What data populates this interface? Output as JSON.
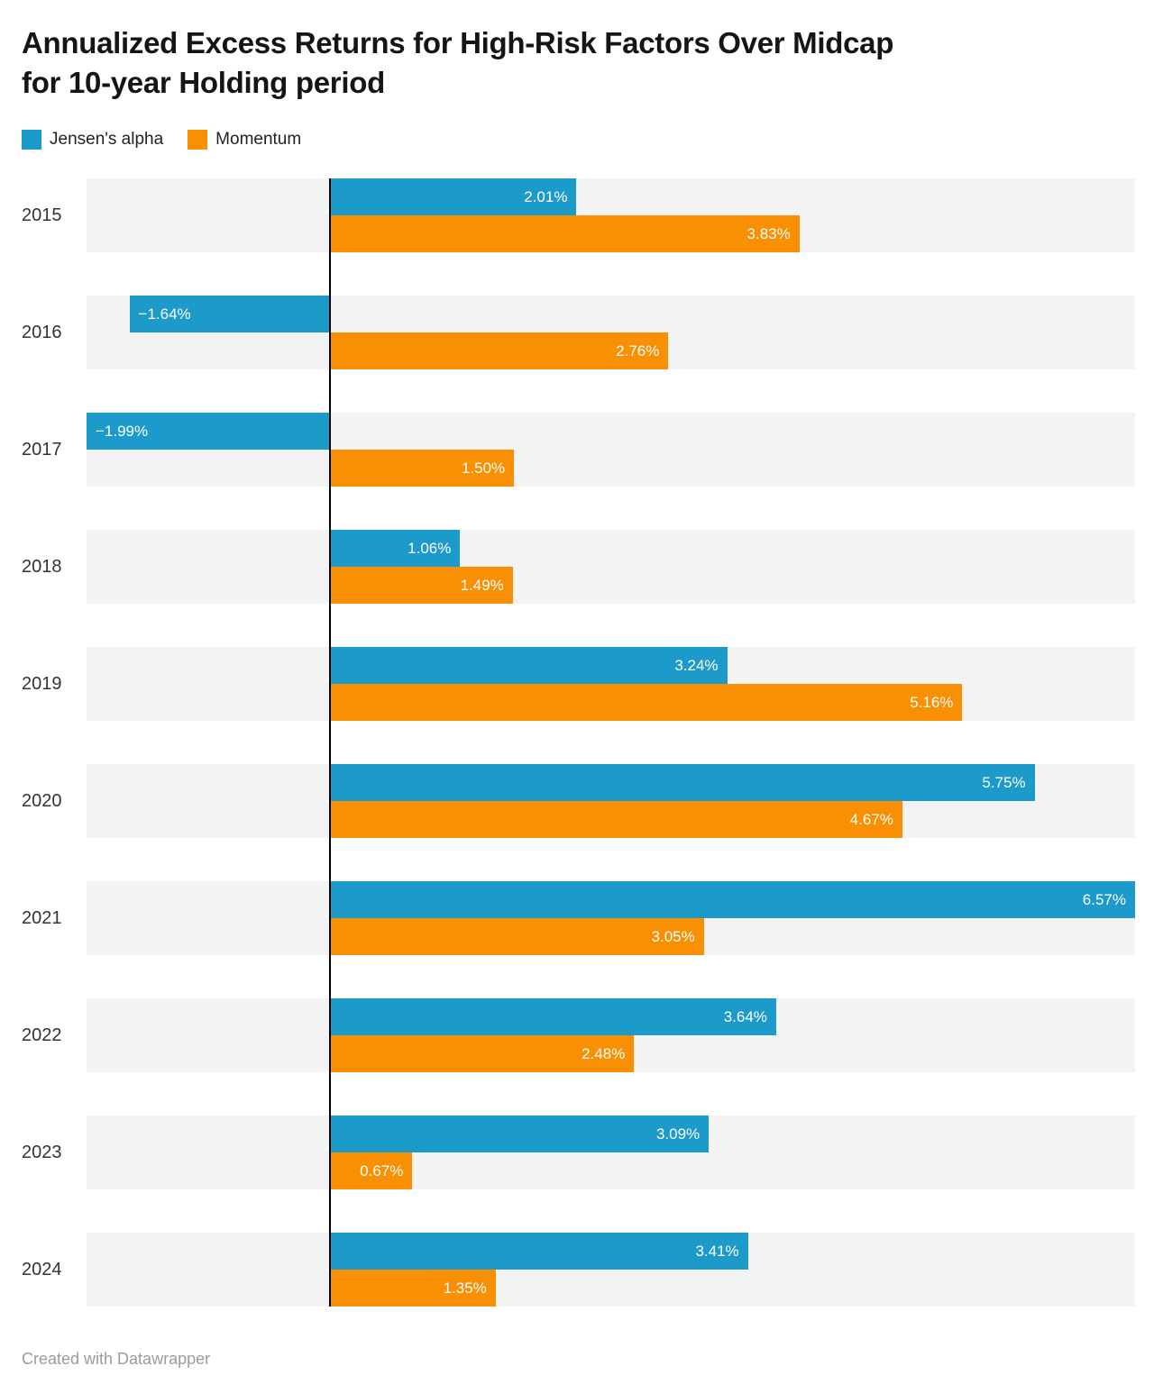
{
  "header": {
    "title": "Annualized Excess Returns for High-Risk Factors Over Midcap\nfor 10-year Holding period"
  },
  "legend": {
    "items": [
      {
        "label": "Jensen's alpha",
        "color": "#1c9bca"
      },
      {
        "label": "Momentum",
        "color": "#f98f03"
      }
    ]
  },
  "chart_data": {
    "type": "bar",
    "orientation": "horizontal",
    "title": "Annualized Excess Returns for High-Risk Factors Over Midcap for 10-year Holding period",
    "unit": "%",
    "xlim": [
      -1.99,
      6.57
    ],
    "grid": false,
    "row_band_color": "#f3f3f3",
    "zero_line_color": "#000000",
    "categories": [
      "2015",
      "2016",
      "2017",
      "2018",
      "2019",
      "2020",
      "2021",
      "2022",
      "2023",
      "2024"
    ],
    "series": [
      {
        "name": "Jensen's alpha",
        "color": "#1c9bca",
        "values": [
          2.01,
          -1.64,
          -1.99,
          1.06,
          3.24,
          5.75,
          6.57,
          3.64,
          3.09,
          3.41
        ],
        "labels": [
          "2.01%",
          "−1.64%",
          "−1.99%",
          "1.06%",
          "3.24%",
          "5.75%",
          "6.57%",
          "3.64%",
          "3.09%",
          "3.41%"
        ]
      },
      {
        "name": "Momentum",
        "color": "#f98f03",
        "values": [
          3.83,
          2.76,
          1.5,
          1.49,
          5.16,
          4.67,
          3.05,
          2.48,
          0.67,
          1.35
        ],
        "labels": [
          "3.83%",
          "2.76%",
          "1.50%",
          "1.49%",
          "5.16%",
          "4.67%",
          "3.05%",
          "2.48%",
          "0.67%",
          "1.35%"
        ]
      }
    ]
  },
  "footer": {
    "text": "Created with Datawrapper"
  }
}
